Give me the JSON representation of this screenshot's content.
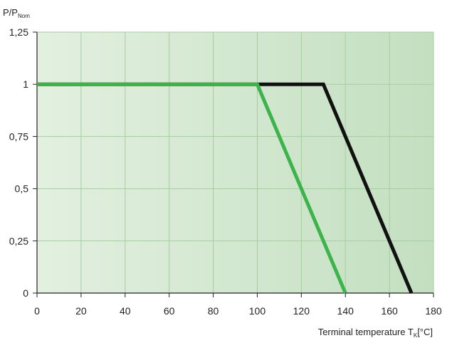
{
  "chart_data": {
    "type": "line",
    "ylabel": {
      "main": "P/P",
      "sub": "Nom"
    },
    "xlabel": {
      "main": "Terminal temperature T",
      "sub": "K",
      "unit": "[°C]"
    },
    "xlim": [
      0,
      180
    ],
    "ylim": [
      0,
      1.25
    ],
    "xticks": [
      0,
      20,
      40,
      60,
      80,
      100,
      120,
      140,
      160,
      180
    ],
    "xtick_labels": [
      "0",
      "20",
      "40",
      "60",
      "80",
      "100",
      "120",
      "140",
      "160",
      "180"
    ],
    "yticks": [
      0,
      0.25,
      0.5,
      0.75,
      1,
      1.25
    ],
    "ytick_labels": [
      "0",
      "0,25",
      "0,5",
      "0,75",
      "1",
      "1,25"
    ],
    "grid": true,
    "series": [
      {
        "color": "#111111",
        "points": [
          [
            0,
            1
          ],
          [
            130,
            1
          ],
          [
            170,
            0
          ]
        ]
      },
      {
        "color": "#3cb44b",
        "points": [
          [
            0,
            1
          ],
          [
            100,
            1
          ],
          [
            140,
            0
          ]
        ]
      }
    ],
    "colors": {
      "background_left": "#e3f0e0",
      "background_right": "#c3dfc0",
      "grid": "#a6cda0",
      "axis": "#222222"
    }
  }
}
